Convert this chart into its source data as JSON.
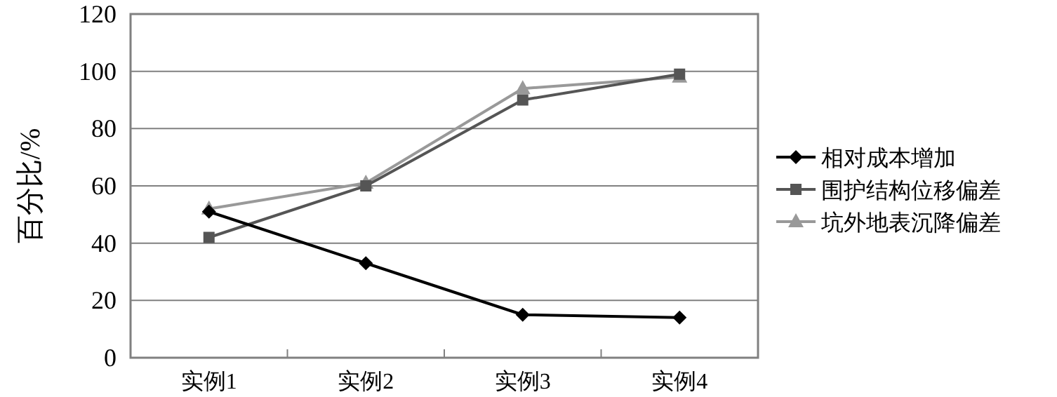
{
  "chart_data": {
    "type": "line",
    "ylabel": "百分比/%",
    "categories": [
      "实例1",
      "实例2",
      "实例3",
      "实例4"
    ],
    "series": [
      {
        "name": "相对成本增加",
        "color": "#000000",
        "marker": "diamond",
        "values": [
          51,
          33,
          15,
          14
        ]
      },
      {
        "name": "围护结构位移偏差",
        "color": "#555555",
        "marker": "square",
        "values": [
          42,
          60,
          90,
          99
        ]
      },
      {
        "name": "坑外地表沉降偏差",
        "color": "#999999",
        "marker": "triangle",
        "values": [
          52,
          61,
          94,
          98
        ]
      }
    ],
    "ylim": [
      0,
      120
    ],
    "yticks": [
      0,
      20,
      40,
      60,
      80,
      100,
      120
    ],
    "grid": "y",
    "legend": "right",
    "line_style": "solid"
  }
}
